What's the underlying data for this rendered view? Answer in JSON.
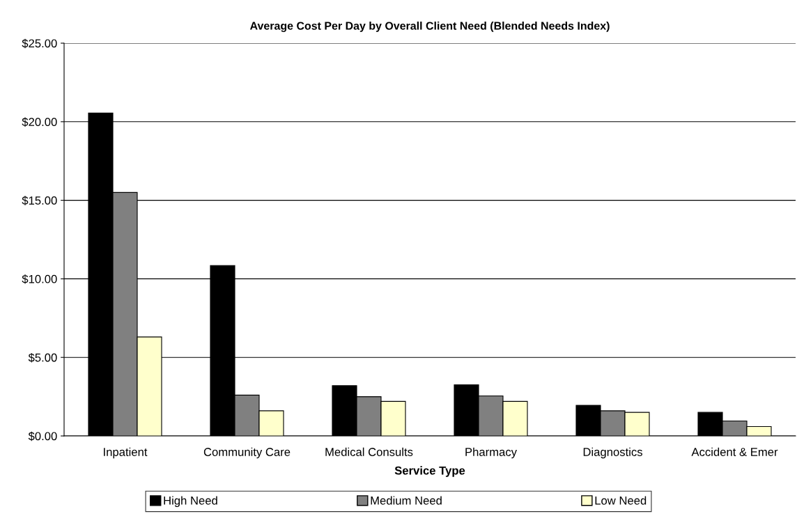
{
  "chart_data": {
    "type": "bar",
    "title": "Average Cost Per Day by Overall Client Need (Blended Needs Index)",
    "xlabel": "Service Type",
    "categories": [
      "Inpatient",
      "Community Care",
      "Medical Consults",
      "Pharmacy",
      "Diagnostics",
      "Accident & Emer"
    ],
    "series": [
      {
        "name": "High Need",
        "color": "#000000",
        "values": [
          20.55,
          10.85,
          3.2,
          3.25,
          1.95,
          1.5
        ]
      },
      {
        "name": "Medium Need",
        "color": "#808080",
        "values": [
          15.5,
          2.6,
          2.5,
          2.55,
          1.6,
          0.95
        ]
      },
      {
        "name": "Low Need",
        "color": "#ffffcc",
        "values": [
          6.3,
          1.6,
          2.2,
          2.2,
          1.5,
          0.6
        ]
      }
    ],
    "ylim": [
      0,
      25
    ],
    "yticks": [
      {
        "value": 0,
        "label": "$0.00"
      },
      {
        "value": 5,
        "label": "$5.00"
      },
      {
        "value": 10,
        "label": "$10.00"
      },
      {
        "value": 15,
        "label": "$15.00"
      },
      {
        "value": 20,
        "label": "$20.00"
      },
      {
        "value": 25,
        "label": "$25.00"
      }
    ],
    "grid": "y",
    "legend": "bottom"
  }
}
